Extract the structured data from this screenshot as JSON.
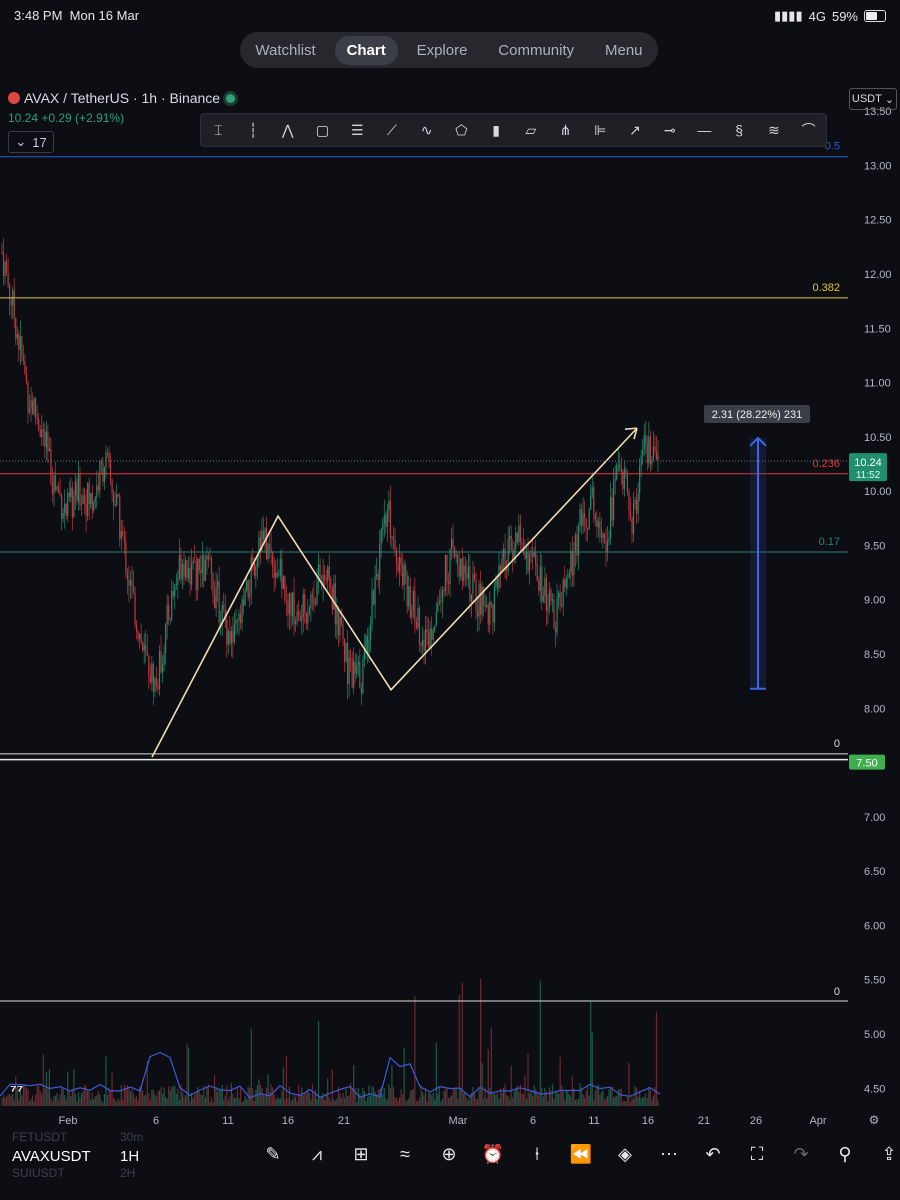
{
  "status_bar": {
    "time": "3:48 PM",
    "date": "Mon 16 Mar",
    "network": "4G",
    "battery": "59%"
  },
  "nav": {
    "tabs": [
      "Watchlist",
      "Chart",
      "Explore",
      "Community",
      "Menu"
    ],
    "active": "Chart"
  },
  "symbol_header": {
    "title": "AVAX / TetherUS · 1h · Binance",
    "change": "10.24 +0.29 (+2.91%)",
    "indicator_count": "17"
  },
  "currency": "USDT",
  "toolbar_icons": [
    "crosshair-tool",
    "vertical-line-tool",
    "trend-pattern-tool",
    "rectangle-tool",
    "horizontal-lines-tool",
    "ray-tool",
    "polyline-tool",
    "shape-tool",
    "candles-tool",
    "channel-tool",
    "fork-tool",
    "fib-tool",
    "path-tool",
    "horizontal-ray-tool",
    "horizontal-line-tool",
    "curve-tool",
    "lines-tool",
    "arc-tool"
  ],
  "price_axis": [
    "13.50",
    "13.00",
    "12.50",
    "12.00",
    "11.50",
    "11.00",
    "10.50",
    "10.00",
    "9.50",
    "9.00",
    "8.50",
    "8.00",
    "7.50",
    "7.00",
    "6.50",
    "6.00",
    "5.50",
    "5.00",
    "4.50"
  ],
  "current_price": "10.24",
  "countdown": "11:52",
  "fib_labels": {
    "l05": "0.5",
    "l0382": "0.382",
    "l0236": "0.236",
    "l017": "0.17",
    "l0": "0",
    "l0b": "0"
  },
  "measure_label": "2.31 (28.22%) 231",
  "green_tag": "7.50",
  "time_axis": [
    "Feb",
    "6",
    "11",
    "16",
    "21",
    "Mar",
    "6",
    "11",
    "16",
    "21",
    "26",
    "Apr"
  ],
  "chart_data": {
    "type": "candlestick",
    "symbol": "AVAXUSDT",
    "interval": "1h",
    "exchange": "Binance",
    "ylim": [
      4.3,
      13.75
    ],
    "fib_levels": [
      {
        "label": "0.5",
        "price": 13.08,
        "color": "#2f5bd8"
      },
      {
        "label": "0.382",
        "price": 11.78,
        "color": "#d8c93f"
      },
      {
        "label": "0.236",
        "price": 10.16,
        "color": "#d83a3a"
      },
      {
        "label": "0.17",
        "price": 9.44,
        "color": "#2f7f78"
      },
      {
        "label": "0",
        "price": 7.58,
        "color": "#dddddd"
      }
    ],
    "zigzag_prices": [
      7.55,
      9.77,
      8.17,
      10.58
    ],
    "price_path": [
      12.2,
      11.6,
      10.9,
      10.6,
      10.1,
      9.8,
      10.0,
      9.9,
      10.3,
      9.8,
      9.1,
      8.5,
      8.2,
      8.9,
      9.4,
      9.2,
      9.3,
      8.9,
      8.6,
      9.0,
      9.6,
      9.4,
      9.1,
      8.8,
      9.0,
      9.3,
      8.9,
      8.3,
      8.3,
      9.2,
      9.8,
      9.3,
      8.9,
      8.6,
      9.1,
      9.4,
      9.2,
      9.0,
      8.9,
      9.3,
      9.6,
      9.4,
      9.1,
      8.8,
      9.2,
      9.7,
      9.9,
      9.6,
      10.3,
      9.7,
      10.4,
      10.2
    ],
    "measure": {
      "from": 8.18,
      "to": 10.49,
      "text": "2.31 (28.22%) 231"
    }
  },
  "bottom": {
    "symbol": "AVAXUSDT",
    "timeframe": "1H",
    "ghost1": "FETUSDT",
    "ghost1tf": "30m",
    "ghost2": "SUIUSDT",
    "ghost2tf": "2H"
  },
  "bottom_icons": [
    "draw-icon",
    "indicators-icon",
    "templates-icon",
    "compare-icon",
    "add-icon",
    "alert-icon",
    "replay-icon",
    "layers-icon",
    "more-icon",
    "undo-icon",
    "fullscreen-icon",
    "redo-icon",
    "bulb-icon",
    "share-icon"
  ]
}
